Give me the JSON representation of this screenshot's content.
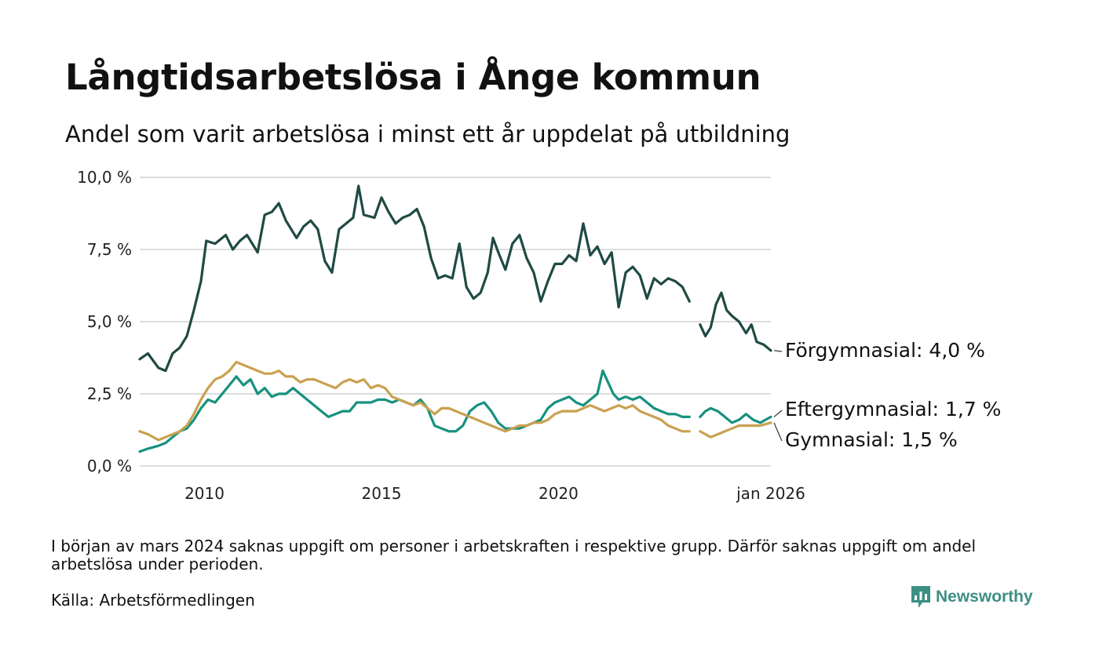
{
  "title": "Långtidsarbetslösa i Ånge kommun",
  "subtitle": "Andel som varit arbetslösa i minst ett år uppdelat på utbildning",
  "note": "I början av mars 2024 saknas uppgift om personer i arbetskraften i respektive grupp. Därför saknas uppgift om andel arbetslösa under perioden.",
  "source": "Källa: Arbetsförmedlingen",
  "brand": "Newsworthy",
  "logo_icon": "bar-chart-speech-bubble-icon",
  "colors": {
    "forgymnasial": "#1f4a44",
    "eftergymnasial": "#17917f",
    "gymnasial": "#c9a150",
    "grid": "#dddddd",
    "brand": "#3d8f84"
  },
  "chart_data": {
    "type": "line",
    "x_unit": "year (decimal, monthly data)",
    "xlim": [
      2008.17,
      2026.0
    ],
    "ylim": [
      0,
      10
    ],
    "y_ticks": [
      0,
      2.5,
      5,
      7.5,
      10
    ],
    "y_tick_labels": [
      "0,0 %",
      "2,5 %",
      "5,0 %",
      "7,5 %",
      "10,0 %"
    ],
    "x_ticks": [
      2010,
      2015,
      2020,
      2026.0
    ],
    "x_tick_labels": [
      "2010",
      "2015",
      "2020",
      "jan 2026"
    ],
    "grid": "horizontal",
    "gap": [
      2023.75,
      2024.0
    ],
    "series": [
      {
        "name": "Förgymnasial",
        "color_key": "forgymnasial",
        "end_label": "Förgymnasial: 4,0 %",
        "points": [
          [
            2008.17,
            3.7
          ],
          [
            2008.4,
            3.9
          ],
          [
            2008.7,
            3.4
          ],
          [
            2008.9,
            3.3
          ],
          [
            2009.1,
            3.9
          ],
          [
            2009.3,
            4.1
          ],
          [
            2009.5,
            4.5
          ],
          [
            2009.7,
            5.4
          ],
          [
            2009.9,
            6.4
          ],
          [
            2010.05,
            7.8
          ],
          [
            2010.3,
            7.7
          ],
          [
            2010.6,
            8.0
          ],
          [
            2010.8,
            7.5
          ],
          [
            2011.0,
            7.8
          ],
          [
            2011.2,
            8.0
          ],
          [
            2011.5,
            7.4
          ],
          [
            2011.7,
            8.7
          ],
          [
            2011.9,
            8.8
          ],
          [
            2012.1,
            9.1
          ],
          [
            2012.3,
            8.5
          ],
          [
            2012.6,
            7.9
          ],
          [
            2012.8,
            8.3
          ],
          [
            2013.0,
            8.5
          ],
          [
            2013.2,
            8.2
          ],
          [
            2013.4,
            7.1
          ],
          [
            2013.6,
            6.7
          ],
          [
            2013.8,
            8.2
          ],
          [
            2014.0,
            8.4
          ],
          [
            2014.2,
            8.6
          ],
          [
            2014.35,
            9.7
          ],
          [
            2014.5,
            8.7
          ],
          [
            2014.8,
            8.6
          ],
          [
            2015.0,
            9.3
          ],
          [
            2015.2,
            8.8
          ],
          [
            2015.4,
            8.4
          ],
          [
            2015.6,
            8.6
          ],
          [
            2015.8,
            8.7
          ],
          [
            2016.0,
            8.9
          ],
          [
            2016.2,
            8.3
          ],
          [
            2016.4,
            7.2
          ],
          [
            2016.6,
            6.5
          ],
          [
            2016.8,
            6.6
          ],
          [
            2017.0,
            6.5
          ],
          [
            2017.2,
            7.7
          ],
          [
            2017.4,
            6.2
          ],
          [
            2017.6,
            5.8
          ],
          [
            2017.8,
            6.0
          ],
          [
            2018.0,
            6.7
          ],
          [
            2018.15,
            7.9
          ],
          [
            2018.3,
            7.4
          ],
          [
            2018.5,
            6.8
          ],
          [
            2018.7,
            7.7
          ],
          [
            2018.9,
            8.0
          ],
          [
            2019.1,
            7.2
          ],
          [
            2019.3,
            6.7
          ],
          [
            2019.5,
            5.7
          ],
          [
            2019.7,
            6.4
          ],
          [
            2019.9,
            7.0
          ],
          [
            2020.1,
            7.0
          ],
          [
            2020.3,
            7.3
          ],
          [
            2020.5,
            7.1
          ],
          [
            2020.7,
            8.4
          ],
          [
            2020.9,
            7.3
          ],
          [
            2021.1,
            7.6
          ],
          [
            2021.3,
            7.0
          ],
          [
            2021.5,
            7.4
          ],
          [
            2021.7,
            5.5
          ],
          [
            2021.9,
            6.7
          ],
          [
            2022.1,
            6.9
          ],
          [
            2022.3,
            6.6
          ],
          [
            2022.5,
            5.8
          ],
          [
            2022.7,
            6.5
          ],
          [
            2022.9,
            6.3
          ],
          [
            2023.1,
            6.5
          ],
          [
            2023.3,
            6.4
          ],
          [
            2023.5,
            6.2
          ],
          [
            2023.7,
            5.7
          ],
          [
            2024.0,
            4.9
          ],
          [
            2024.15,
            4.5
          ],
          [
            2024.3,
            4.8
          ],
          [
            2024.45,
            5.6
          ],
          [
            2024.6,
            6.0
          ],
          [
            2024.75,
            5.4
          ],
          [
            2024.9,
            5.2
          ],
          [
            2025.1,
            5.0
          ],
          [
            2025.3,
            4.6
          ],
          [
            2025.45,
            4.9
          ],
          [
            2025.6,
            4.3
          ],
          [
            2025.8,
            4.2
          ],
          [
            2026.0,
            4.0
          ]
        ]
      },
      {
        "name": "Eftergymnasial",
        "color_key": "eftergymnasial",
        "end_label": "Eftergymnasial: 1,7 %",
        "points": [
          [
            2008.17,
            0.5
          ],
          [
            2008.4,
            0.6
          ],
          [
            2008.7,
            0.7
          ],
          [
            2008.9,
            0.8
          ],
          [
            2009.1,
            1.0
          ],
          [
            2009.3,
            1.2
          ],
          [
            2009.5,
            1.3
          ],
          [
            2009.7,
            1.6
          ],
          [
            2009.9,
            2.0
          ],
          [
            2010.1,
            2.3
          ],
          [
            2010.3,
            2.2
          ],
          [
            2010.5,
            2.5
          ],
          [
            2010.7,
            2.8
          ],
          [
            2010.9,
            3.1
          ],
          [
            2011.1,
            2.8
          ],
          [
            2011.3,
            3.0
          ],
          [
            2011.5,
            2.5
          ],
          [
            2011.7,
            2.7
          ],
          [
            2011.9,
            2.4
          ],
          [
            2012.1,
            2.5
          ],
          [
            2012.3,
            2.5
          ],
          [
            2012.5,
            2.7
          ],
          [
            2012.7,
            2.5
          ],
          [
            2012.9,
            2.3
          ],
          [
            2013.1,
            2.1
          ],
          [
            2013.3,
            1.9
          ],
          [
            2013.5,
            1.7
          ],
          [
            2013.7,
            1.8
          ],
          [
            2013.9,
            1.9
          ],
          [
            2014.1,
            1.9
          ],
          [
            2014.3,
            2.2
          ],
          [
            2014.5,
            2.2
          ],
          [
            2014.7,
            2.2
          ],
          [
            2014.9,
            2.3
          ],
          [
            2015.1,
            2.3
          ],
          [
            2015.3,
            2.2
          ],
          [
            2015.5,
            2.3
          ],
          [
            2015.7,
            2.2
          ],
          [
            2015.9,
            2.1
          ],
          [
            2016.1,
            2.3
          ],
          [
            2016.3,
            2.0
          ],
          [
            2016.5,
            1.4
          ],
          [
            2016.7,
            1.3
          ],
          [
            2016.9,
            1.2
          ],
          [
            2017.1,
            1.2
          ],
          [
            2017.3,
            1.4
          ],
          [
            2017.5,
            1.9
          ],
          [
            2017.7,
            2.1
          ],
          [
            2017.9,
            2.2
          ],
          [
            2018.1,
            1.9
          ],
          [
            2018.3,
            1.5
          ],
          [
            2018.5,
            1.3
          ],
          [
            2018.7,
            1.3
          ],
          [
            2018.9,
            1.3
          ],
          [
            2019.1,
            1.4
          ],
          [
            2019.3,
            1.5
          ],
          [
            2019.5,
            1.6
          ],
          [
            2019.7,
            2.0
          ],
          [
            2019.9,
            2.2
          ],
          [
            2020.1,
            2.3
          ],
          [
            2020.3,
            2.4
          ],
          [
            2020.5,
            2.2
          ],
          [
            2020.7,
            2.1
          ],
          [
            2020.9,
            2.3
          ],
          [
            2021.1,
            2.5
          ],
          [
            2021.25,
            3.3
          ],
          [
            2021.4,
            2.9
          ],
          [
            2021.55,
            2.5
          ],
          [
            2021.7,
            2.3
          ],
          [
            2021.9,
            2.4
          ],
          [
            2022.1,
            2.3
          ],
          [
            2022.3,
            2.4
          ],
          [
            2022.5,
            2.2
          ],
          [
            2022.7,
            2.0
          ],
          [
            2022.9,
            1.9
          ],
          [
            2023.1,
            1.8
          ],
          [
            2023.3,
            1.8
          ],
          [
            2023.5,
            1.7
          ],
          [
            2023.7,
            1.7
          ],
          [
            2024.0,
            1.7
          ],
          [
            2024.15,
            1.9
          ],
          [
            2024.3,
            2.0
          ],
          [
            2024.5,
            1.9
          ],
          [
            2024.7,
            1.7
          ],
          [
            2024.9,
            1.5
          ],
          [
            2025.1,
            1.6
          ],
          [
            2025.3,
            1.8
          ],
          [
            2025.5,
            1.6
          ],
          [
            2025.7,
            1.5
          ],
          [
            2026.0,
            1.7
          ]
        ]
      },
      {
        "name": "Gymnasial",
        "color_key": "gymnasial",
        "end_label": "Gymnasial: 1,5 %",
        "points": [
          [
            2008.17,
            1.2
          ],
          [
            2008.4,
            1.1
          ],
          [
            2008.7,
            0.9
          ],
          [
            2008.9,
            1.0
          ],
          [
            2009.1,
            1.1
          ],
          [
            2009.3,
            1.2
          ],
          [
            2009.5,
            1.4
          ],
          [
            2009.7,
            1.8
          ],
          [
            2009.9,
            2.3
          ],
          [
            2010.1,
            2.7
          ],
          [
            2010.3,
            3.0
          ],
          [
            2010.5,
            3.1
          ],
          [
            2010.7,
            3.3
          ],
          [
            2010.9,
            3.6
          ],
          [
            2011.1,
            3.5
          ],
          [
            2011.3,
            3.4
          ],
          [
            2011.5,
            3.3
          ],
          [
            2011.7,
            3.2
          ],
          [
            2011.9,
            3.2
          ],
          [
            2012.1,
            3.3
          ],
          [
            2012.3,
            3.1
          ],
          [
            2012.5,
            3.1
          ],
          [
            2012.7,
            2.9
          ],
          [
            2012.9,
            3.0
          ],
          [
            2013.1,
            3.0
          ],
          [
            2013.3,
            2.9
          ],
          [
            2013.5,
            2.8
          ],
          [
            2013.7,
            2.7
          ],
          [
            2013.9,
            2.9
          ],
          [
            2014.1,
            3.0
          ],
          [
            2014.3,
            2.9
          ],
          [
            2014.5,
            3.0
          ],
          [
            2014.7,
            2.7
          ],
          [
            2014.9,
            2.8
          ],
          [
            2015.1,
            2.7
          ],
          [
            2015.3,
            2.4
          ],
          [
            2015.5,
            2.3
          ],
          [
            2015.7,
            2.2
          ],
          [
            2015.9,
            2.1
          ],
          [
            2016.1,
            2.2
          ],
          [
            2016.3,
            2.0
          ],
          [
            2016.5,
            1.8
          ],
          [
            2016.7,
            2.0
          ],
          [
            2016.9,
            2.0
          ],
          [
            2017.1,
            1.9
          ],
          [
            2017.3,
            1.8
          ],
          [
            2017.5,
            1.7
          ],
          [
            2017.7,
            1.6
          ],
          [
            2017.9,
            1.5
          ],
          [
            2018.1,
            1.4
          ],
          [
            2018.3,
            1.3
          ],
          [
            2018.5,
            1.2
          ],
          [
            2018.7,
            1.3
          ],
          [
            2018.9,
            1.4
          ],
          [
            2019.1,
            1.4
          ],
          [
            2019.3,
            1.5
          ],
          [
            2019.5,
            1.5
          ],
          [
            2019.7,
            1.6
          ],
          [
            2019.9,
            1.8
          ],
          [
            2020.1,
            1.9
          ],
          [
            2020.3,
            1.9
          ],
          [
            2020.5,
            1.9
          ],
          [
            2020.7,
            2.0
          ],
          [
            2020.9,
            2.1
          ],
          [
            2021.1,
            2.0
          ],
          [
            2021.3,
            1.9
          ],
          [
            2021.5,
            2.0
          ],
          [
            2021.7,
            2.1
          ],
          [
            2021.9,
            2.0
          ],
          [
            2022.1,
            2.1
          ],
          [
            2022.3,
            1.9
          ],
          [
            2022.5,
            1.8
          ],
          [
            2022.7,
            1.7
          ],
          [
            2022.9,
            1.6
          ],
          [
            2023.1,
            1.4
          ],
          [
            2023.3,
            1.3
          ],
          [
            2023.5,
            1.2
          ],
          [
            2023.7,
            1.2
          ],
          [
            2024.0,
            1.2
          ],
          [
            2024.15,
            1.1
          ],
          [
            2024.3,
            1.0
          ],
          [
            2024.5,
            1.1
          ],
          [
            2024.7,
            1.2
          ],
          [
            2024.9,
            1.3
          ],
          [
            2025.1,
            1.4
          ],
          [
            2025.3,
            1.4
          ],
          [
            2025.5,
            1.4
          ],
          [
            2025.7,
            1.4
          ],
          [
            2026.0,
            1.5
          ]
        ]
      }
    ]
  }
}
